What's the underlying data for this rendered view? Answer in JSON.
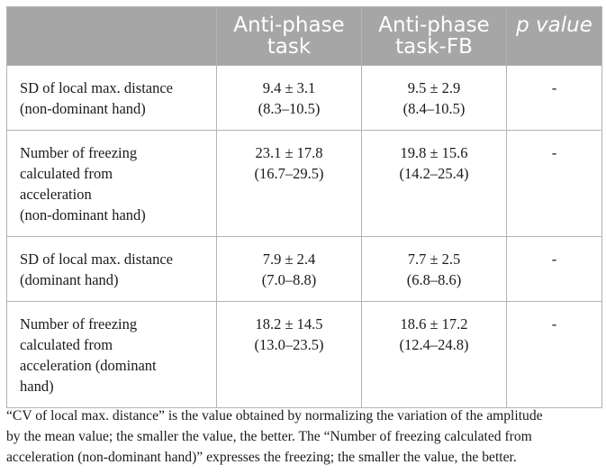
{
  "table": {
    "headers": [
      "",
      "Anti-phase task",
      "Anti-phase task-FB",
      "p value"
    ],
    "rows": [
      {
        "label": [
          "SD of local max. distance",
          "(non-dominant hand)"
        ],
        "task": [
          "9.4 ± 3.1",
          "(8.3–10.5)"
        ],
        "task_fb": [
          "9.5 ± 2.9",
          "(8.4–10.5)"
        ],
        "p": "-"
      },
      {
        "label": [
          "Number of freezing",
          "calculated from",
          "acceleration",
          "(non-dominant hand)"
        ],
        "task": [
          "23.1 ± 17.8",
          "(16.7–29.5)"
        ],
        "task_fb": [
          "19.8 ± 15.6",
          "(14.2–25.4)"
        ],
        "p": "-"
      },
      {
        "label": [
          "SD of local max. distance",
          "(dominant hand)"
        ],
        "task": [
          "7.9 ± 2.4",
          "(7.0–8.8)"
        ],
        "task_fb": [
          "7.7 ± 2.5",
          "(6.8–8.6)"
        ],
        "p": "-"
      },
      {
        "label": [
          "Number of freezing",
          "calculated from",
          "acceleration (dominant",
          "hand)"
        ],
        "task": [
          "18.2 ± 14.5",
          "(13.0–23.5)"
        ],
        "task_fb": [
          "18.6 ± 17.2",
          "(12.4–24.8)"
        ],
        "p": "-"
      }
    ]
  },
  "footnote": [
    "“CV of local max. distance” is the value obtained by normalizing the variation of the amplitude",
    "by the mean value; the smaller the value, the better. The “Number of freezing calculated from",
    "acceleration (non-dominant hand)” expresses the freezing; the smaller the value, the better."
  ]
}
